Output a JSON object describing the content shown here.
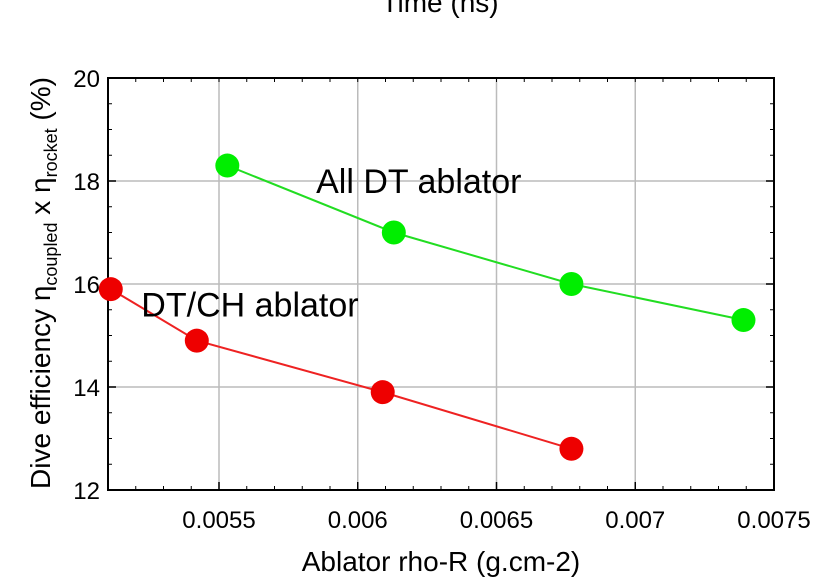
{
  "chart_data": {
    "type": "line",
    "top_label": "Time (ns)",
    "xlabel": "Ablator rho-R (g.cm-2)",
    "ylabel": {
      "prefix": "Dive efficiency η",
      "sub1": "coupled",
      "middle": " x η",
      "sub2": "rocket",
      "suffix": " (%)"
    },
    "xlim": [
      0.0051,
      0.0075
    ],
    "ylim": [
      12,
      20
    ],
    "xticks": [
      0.0055,
      0.006,
      0.0065,
      0.007,
      0.0075
    ],
    "xtick_labels": [
      "0.0055",
      "0.006",
      "0.0065",
      "0.007",
      "0.0075"
    ],
    "yticks": [
      12,
      14,
      16,
      18,
      20
    ],
    "ytick_labels": [
      "12",
      "14",
      "16",
      "18",
      "20"
    ],
    "grid": true,
    "annotations": [
      {
        "text": "All DT ablator",
        "x": 0.00585,
        "y": 18.0
      },
      {
        "text": "DT/CH ablator",
        "x": 0.00522,
        "y": 15.6
      }
    ],
    "series": [
      {
        "color": "#22dd22",
        "marker_color": "#00ee00",
        "x": [
          0.00553,
          0.00613,
          0.00677,
          0.00739
        ],
        "y": [
          18.3,
          17.0,
          16.0,
          15.3
        ]
      },
      {
        "color": "#ee2222",
        "marker_color": "#ee0000",
        "x": [
          0.00511,
          0.00542,
          0.00609,
          0.00677
        ],
        "y": [
          15.9,
          14.9,
          13.9,
          12.8
        ]
      }
    ]
  }
}
